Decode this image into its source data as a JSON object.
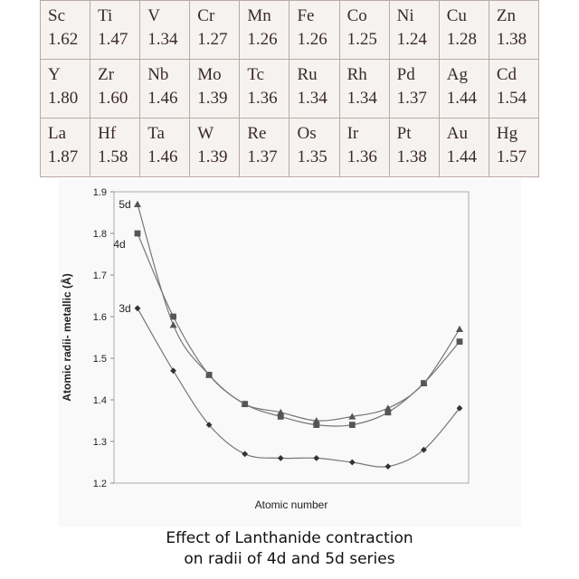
{
  "table": {
    "rows": [
      [
        {
          "symbol": "Sc",
          "value": "1.62"
        },
        {
          "symbol": "Ti",
          "value": "1.47"
        },
        {
          "symbol": "V",
          "value": "1.34"
        },
        {
          "symbol": "Cr",
          "value": "1.27"
        },
        {
          "symbol": "Mn",
          "value": "1.26"
        },
        {
          "symbol": "Fe",
          "value": "1.26"
        },
        {
          "symbol": "Co",
          "value": "1.25"
        },
        {
          "symbol": "Ni",
          "value": "1.24"
        },
        {
          "symbol": "Cu",
          "value": "1.28"
        },
        {
          "symbol": "Zn",
          "value": "1.38"
        }
      ],
      [
        {
          "symbol": "Y",
          "value": "1.80"
        },
        {
          "symbol": "Zr",
          "value": "1.60"
        },
        {
          "symbol": "Nb",
          "value": "1.46"
        },
        {
          "symbol": "Mo",
          "value": "1.39"
        },
        {
          "symbol": "Tc",
          "value": "1.36"
        },
        {
          "symbol": "Ru",
          "value": "1.34"
        },
        {
          "symbol": "Rh",
          "value": "1.34"
        },
        {
          "symbol": "Pd",
          "value": "1.37"
        },
        {
          "symbol": "Ag",
          "value": "1.44"
        },
        {
          "symbol": "Cd",
          "value": "1.54"
        }
      ],
      [
        {
          "symbol": "La",
          "value": "1.87"
        },
        {
          "symbol": "Hf",
          "value": "1.58"
        },
        {
          "symbol": "Ta",
          "value": "1.46"
        },
        {
          "symbol": "W",
          "value": "1.39"
        },
        {
          "symbol": "Re",
          "value": "1.37"
        },
        {
          "symbol": "Os",
          "value": "1.35"
        },
        {
          "symbol": "Ir",
          "value": "1.36"
        },
        {
          "symbol": "Pt",
          "value": "1.38"
        },
        {
          "symbol": "Au",
          "value": "1.44"
        },
        {
          "symbol": "Hg",
          "value": "1.57"
        }
      ]
    ]
  },
  "caption": {
    "line1": "Effect of Lanthanide contraction",
    "line2": "on radii of 4d and 5d series"
  },
  "chart_data": {
    "type": "line",
    "title": "",
    "xlabel": "Atomic number",
    "ylabel": "Atomic radii- metallic (Å)",
    "ylim": [
      1.2,
      1.9
    ],
    "yticks": [
      "1.2",
      "1.3",
      "1.4",
      "1.5",
      "1.6",
      "1.7",
      "1.8",
      "1.9"
    ],
    "x": [
      1,
      2,
      3,
      4,
      5,
      6,
      7,
      8,
      9,
      10
    ],
    "grid": false,
    "series": [
      {
        "name": "3d",
        "marker": "diamond",
        "color": "#333333",
        "values": [
          1.62,
          1.47,
          1.34,
          1.27,
          1.26,
          1.26,
          1.25,
          1.24,
          1.28,
          1.38
        ]
      },
      {
        "name": "4d",
        "marker": "square",
        "color": "#555555",
        "values": [
          1.8,
          1.6,
          1.46,
          1.39,
          1.36,
          1.34,
          1.34,
          1.37,
          1.44,
          1.54
        ]
      },
      {
        "name": "5d",
        "marker": "triangle",
        "color": "#555555",
        "values": [
          1.87,
          1.58,
          1.46,
          1.39,
          1.37,
          1.35,
          1.36,
          1.38,
          1.44,
          1.57
        ]
      }
    ]
  }
}
